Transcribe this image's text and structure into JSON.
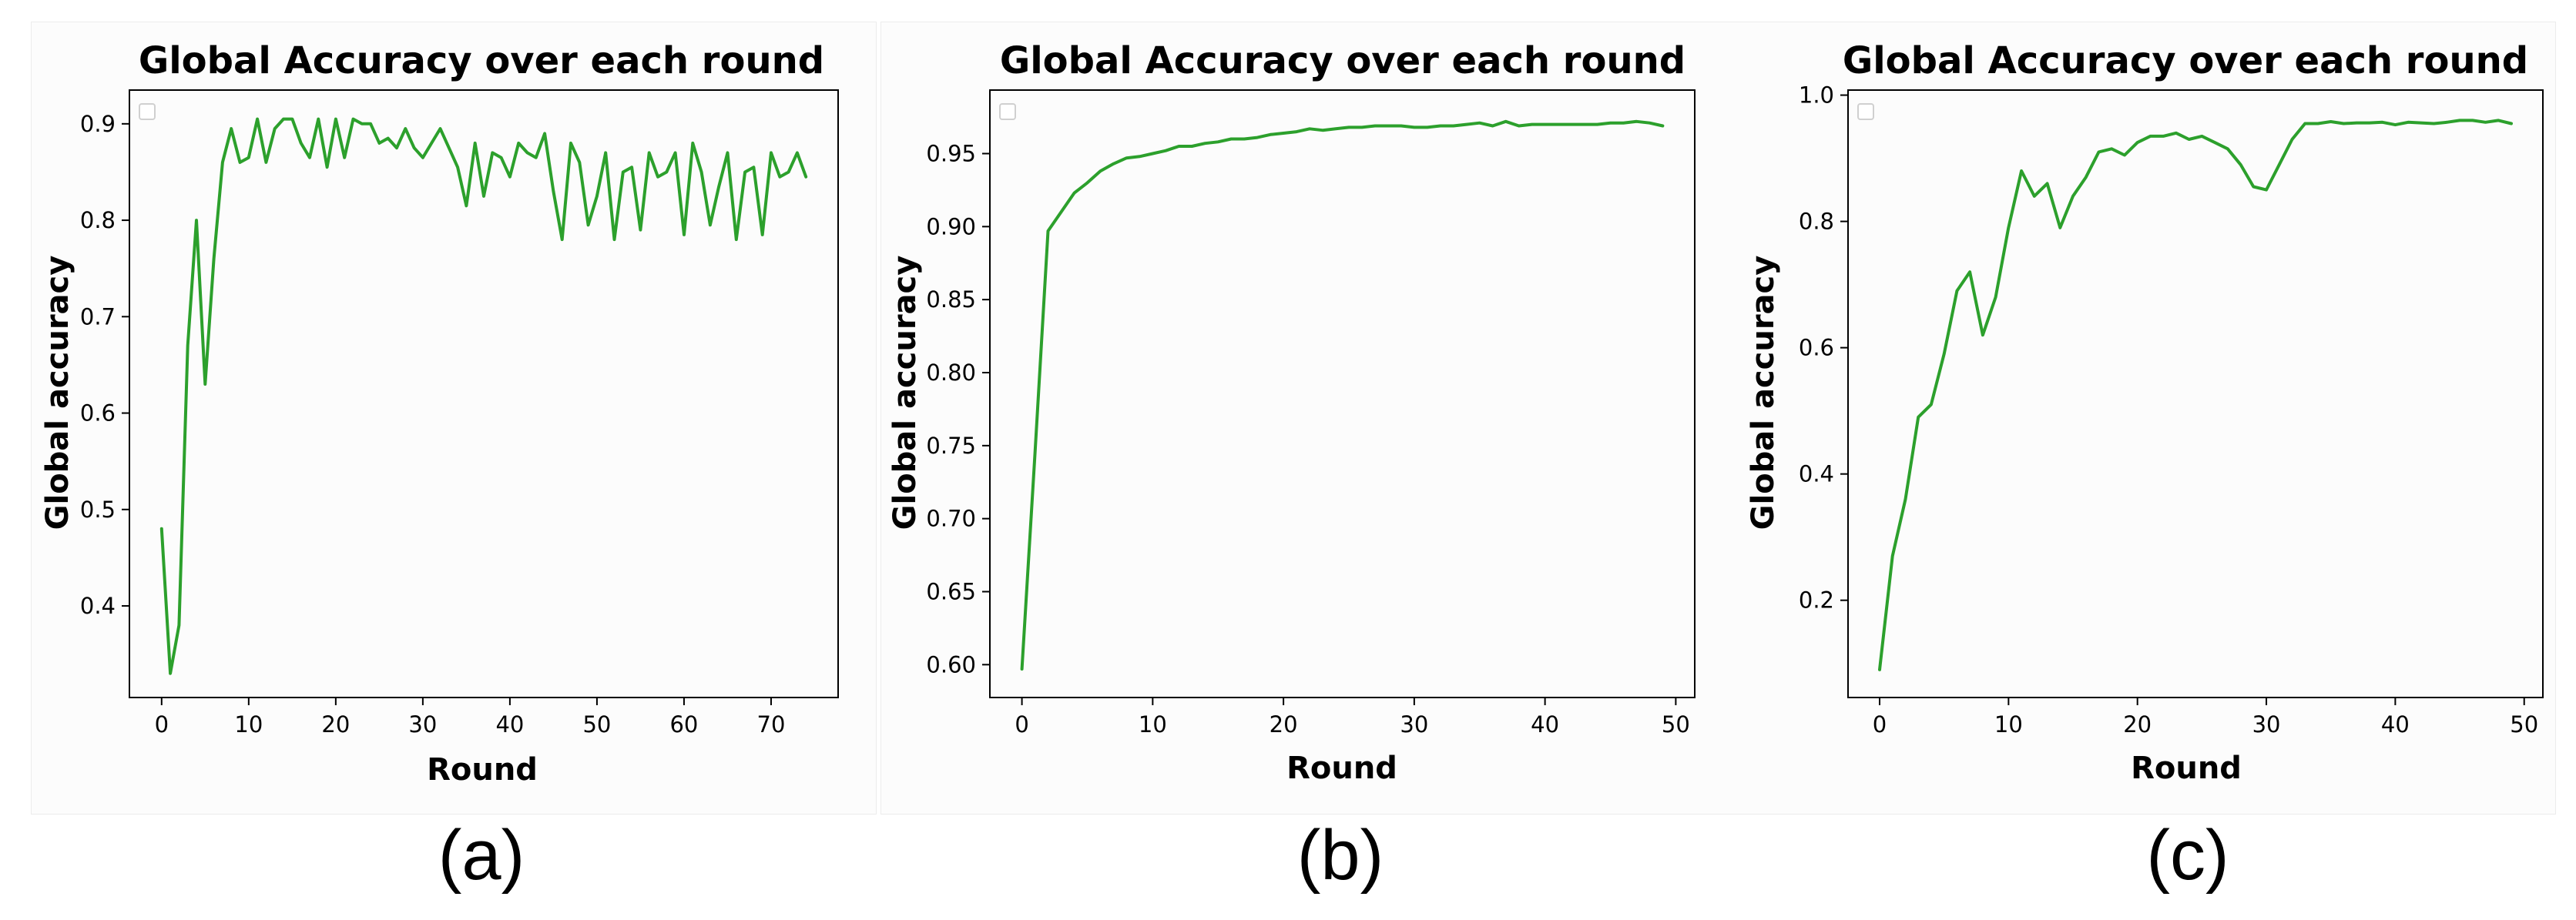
{
  "figure": {
    "captions": [
      "(a)",
      "(b)",
      "(c)"
    ]
  },
  "colors": {
    "line": "#2ca02c",
    "axes": "#000000",
    "legend_box": "#d0d0d0"
  },
  "chart_data": [
    {
      "type": "line",
      "title": "Global Accuracy over each round",
      "xlabel": "Round",
      "ylabel": "Global accuracy",
      "xlim": [
        -3.7,
        77.7
      ],
      "ylim": [
        0.305,
        0.935
      ],
      "xticks": [
        0,
        10,
        20,
        30,
        40,
        50,
        60,
        70
      ],
      "yticks": [
        0.4,
        0.5,
        0.6,
        0.7,
        0.8,
        0.9
      ],
      "ytick_labels": [
        "0.4",
        "0.5",
        "0.6",
        "0.7",
        "0.8",
        "0.9"
      ],
      "grid": false,
      "legend": "top-left (empty)",
      "x": [
        0,
        1,
        2,
        3,
        4,
        5,
        6,
        7,
        8,
        9,
        10,
        11,
        12,
        13,
        14,
        15,
        16,
        17,
        18,
        19,
        20,
        21,
        22,
        23,
        24,
        25,
        26,
        27,
        28,
        29,
        30,
        31,
        32,
        33,
        34,
        35,
        36,
        37,
        38,
        39,
        40,
        41,
        42,
        43,
        44,
        45,
        46,
        47,
        48,
        49,
        50,
        51,
        52,
        53,
        54,
        55,
        56,
        57,
        58,
        59,
        60,
        61,
        62,
        63,
        64,
        65,
        66,
        67,
        68,
        69,
        70,
        71,
        72,
        73,
        74
      ],
      "y": [
        0.48,
        0.33,
        0.38,
        0.67,
        0.8,
        0.63,
        0.76,
        0.86,
        0.895,
        0.86,
        0.865,
        0.905,
        0.86,
        0.895,
        0.905,
        0.905,
        0.88,
        0.865,
        0.905,
        0.855,
        0.905,
        0.865,
        0.905,
        0.9,
        0.9,
        0.88,
        0.885,
        0.875,
        0.895,
        0.875,
        0.865,
        0.88,
        0.895,
        0.875,
        0.855,
        0.815,
        0.88,
        0.825,
        0.87,
        0.865,
        0.845,
        0.88,
        0.87,
        0.865,
        0.89,
        0.83,
        0.78,
        0.88,
        0.86,
        0.795,
        0.825,
        0.87,
        0.78,
        0.85,
        0.855,
        0.79,
        0.87,
        0.845,
        0.85,
        0.87,
        0.785,
        0.88,
        0.85,
        0.795,
        0.835,
        0.87,
        0.78,
        0.85,
        0.855,
        0.785,
        0.87,
        0.845,
        0.85,
        0.87,
        0.845
      ]
    },
    {
      "type": "line",
      "title": "Global Accuracy over each round",
      "xlabel": "Round",
      "ylabel": "Global accuracy",
      "xlim": [
        -2.45,
        51.45
      ],
      "ylim": [
        0.5775,
        0.9935
      ],
      "xticks": [
        0,
        10,
        20,
        30,
        40,
        50
      ],
      "yticks": [
        0.6,
        0.65,
        0.7,
        0.75,
        0.8,
        0.85,
        0.9,
        0.95
      ],
      "ytick_labels": [
        "0.60",
        "0.65",
        "0.70",
        "0.75",
        "0.80",
        "0.85",
        "0.90",
        "0.95"
      ],
      "grid": false,
      "legend": "top-left (empty)",
      "x": [
        0,
        1,
        2,
        3,
        4,
        5,
        6,
        7,
        8,
        9,
        10,
        11,
        12,
        13,
        14,
        15,
        16,
        17,
        18,
        19,
        20,
        21,
        22,
        23,
        24,
        25,
        26,
        27,
        28,
        29,
        30,
        31,
        32,
        33,
        34,
        35,
        36,
        37,
        38,
        39,
        40,
        41,
        42,
        43,
        44,
        45,
        46,
        47,
        48,
        49
      ],
      "y": [
        0.597,
        0.745,
        0.897,
        0.91,
        0.923,
        0.93,
        0.938,
        0.943,
        0.947,
        0.948,
        0.95,
        0.952,
        0.955,
        0.955,
        0.957,
        0.958,
        0.96,
        0.96,
        0.961,
        0.963,
        0.964,
        0.965,
        0.967,
        0.966,
        0.967,
        0.968,
        0.968,
        0.969,
        0.969,
        0.969,
        0.968,
        0.968,
        0.969,
        0.969,
        0.97,
        0.971,
        0.969,
        0.972,
        0.969,
        0.97,
        0.97,
        0.97,
        0.97,
        0.97,
        0.97,
        0.971,
        0.971,
        0.972,
        0.971,
        0.969
      ]
    },
    {
      "type": "line",
      "title": "Global Accuracy over each round",
      "xlabel": "Round",
      "ylabel": "Global accuracy",
      "xlim": [
        -2.45,
        51.45
      ],
      "ylim": [
        0.046,
        1.008
      ],
      "xticks": [
        0,
        10,
        20,
        30,
        40,
        50
      ],
      "yticks": [
        0.2,
        0.4,
        0.6,
        0.8,
        1.0
      ],
      "ytick_labels": [
        "0.2",
        "0.4",
        "0.6",
        "0.8",
        "1.0"
      ],
      "grid": false,
      "legend": "top-left (empty)",
      "x": [
        0,
        1,
        2,
        3,
        4,
        5,
        6,
        7,
        8,
        9,
        10,
        11,
        12,
        13,
        14,
        15,
        16,
        17,
        18,
        19,
        20,
        21,
        22,
        23,
        24,
        25,
        26,
        27,
        28,
        29,
        30,
        31,
        32,
        33,
        34,
        35,
        36,
        37,
        38,
        39,
        40,
        41,
        42,
        43,
        44,
        45,
        46,
        47,
        48,
        49
      ],
      "y": [
        0.09,
        0.27,
        0.36,
        0.49,
        0.51,
        0.59,
        0.69,
        0.72,
        0.62,
        0.68,
        0.79,
        0.88,
        0.84,
        0.86,
        0.79,
        0.84,
        0.87,
        0.91,
        0.915,
        0.905,
        0.925,
        0.935,
        0.935,
        0.94,
        0.93,
        0.935,
        0.925,
        0.915,
        0.89,
        0.855,
        0.85,
        0.89,
        0.93,
        0.955,
        0.955,
        0.958,
        0.955,
        0.956,
        0.956,
        0.957,
        0.953,
        0.957,
        0.956,
        0.955,
        0.957,
        0.96,
        0.96,
        0.957,
        0.96,
        0.955
      ]
    }
  ]
}
